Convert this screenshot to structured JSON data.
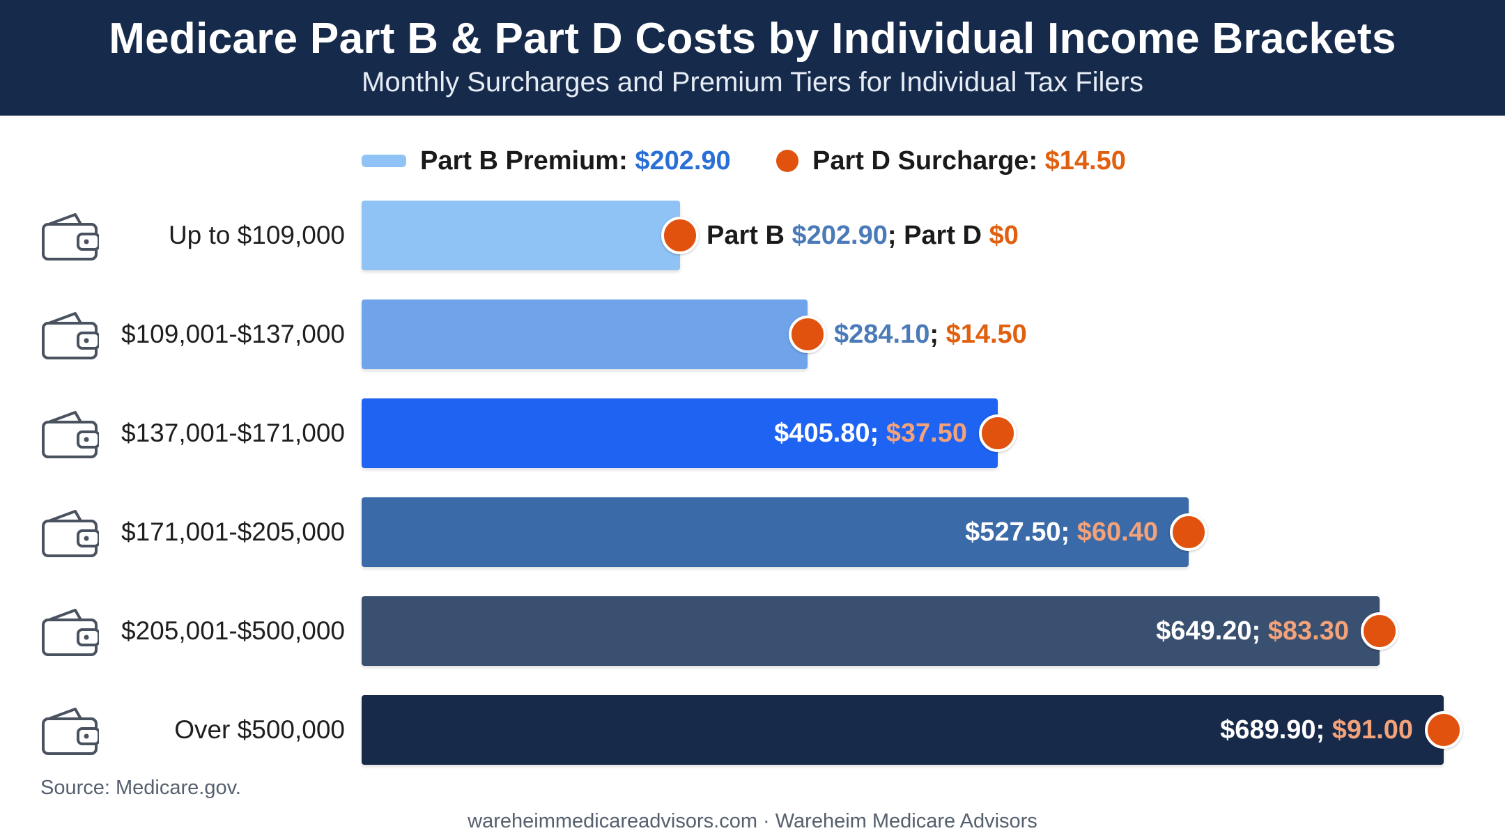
{
  "header": {
    "title": "Medicare Part B & Part D Costs by Individual Income Brackets",
    "subtitle": "Monthly Surcharges and Premium Tiers for Individual Tax Filers"
  },
  "legend": {
    "part_b_label": "Part B Premium:",
    "part_b_value": "$202.90",
    "part_d_label": "Part D Surcharge:",
    "part_d_value": "$14.50"
  },
  "chart_data": {
    "type": "bar",
    "orientation": "horizontal",
    "categories": [
      "Up to $109,000",
      "$109,001-$137,000",
      "$137,001-$171,000",
      "$171,001-$205,000",
      "$205,001-$500,000",
      "Over $500,000"
    ],
    "series": [
      {
        "name": "Part B Premium",
        "values": [
          202.9,
          284.1,
          405.8,
          527.5,
          649.2,
          689.9
        ]
      },
      {
        "name": "Part D Surcharge",
        "values": [
          0,
          14.5,
          37.5,
          60.4,
          83.3,
          91.0
        ]
      }
    ],
    "value_labels": [
      {
        "b_prefix": "Part B ",
        "b": "$202.90",
        "sep": "; ",
        "d_prefix": "Part D ",
        "d": "$0"
      },
      {
        "b_prefix": "",
        "b": "$284.10",
        "sep": "; ",
        "d_prefix": "",
        "d": "$14.50"
      },
      {
        "b_prefix": "",
        "b": "$405.80",
        "sep": "; ",
        "d_prefix": "",
        "d": "$37.50"
      },
      {
        "b_prefix": "",
        "b": "$527.50",
        "sep": "; ",
        "d_prefix": "",
        "d": "$60.40"
      },
      {
        "b_prefix": "",
        "b": "$649.20",
        "sep": "; ",
        "d_prefix": "",
        "d": "$83.30"
      },
      {
        "b_prefix": "",
        "b": "$689.90",
        "sep": "; ",
        "d_prefix": "",
        "d": "$91.00"
      }
    ],
    "bar_colors": [
      "#8fc3f5",
      "#6fa4ea",
      "#1e63f2",
      "#3a6aa8",
      "#3a5070",
      "#172a4a"
    ],
    "dot_color": "#e0520e",
    "legend_position": "top-center",
    "grid": false
  },
  "icons": {
    "row_icon": "wallet-icon"
  },
  "source": "Source: Medicare.gov.",
  "footer": "wareheimmedicareadvisors.com · Wareheim Medicare Advisors"
}
